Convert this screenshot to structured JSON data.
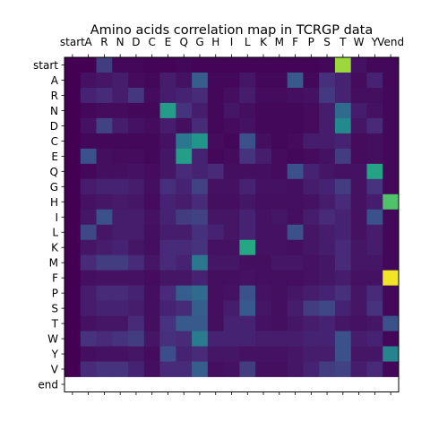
{
  "chart_data": {
    "type": "heatmap",
    "title": "Amino acids correlation map in TCRGP data",
    "x_labels": [
      "start",
      "A",
      "R",
      "N",
      "D",
      "C",
      "E",
      "Q",
      "G",
      "H",
      "I",
      "L",
      "K",
      "M",
      "F",
      "P",
      "S",
      "T",
      "W",
      "Y",
      "Vend"
    ],
    "y_labels": [
      "start",
      "A",
      "R",
      "N",
      "D",
      "C",
      "E",
      "Q",
      "G",
      "H",
      "I",
      "L",
      "K",
      "M",
      "F",
      "P",
      "S",
      "T",
      "W",
      "Y",
      "V",
      "end"
    ],
    "n_columns": 21,
    "colormap": "viridis",
    "value_range": [
      0,
      1
    ],
    "grid": false,
    "missing_rows": [
      "end"
    ],
    "values": [
      [
        0.0,
        0.0,
        0.18,
        0.02,
        0.02,
        0.01,
        0.01,
        0.02,
        0.01,
        0.01,
        0.01,
        0.01,
        0.01,
        0.01,
        0.01,
        0.01,
        0.02,
        0.85,
        0.05,
        0.02,
        0.02
      ],
      [
        0.0,
        0.05,
        0.06,
        0.08,
        0.03,
        0.02,
        0.08,
        0.05,
        0.3,
        0.02,
        0.02,
        0.06,
        0.02,
        0.02,
        0.28,
        0.02,
        0.14,
        0.1,
        0.03,
        0.1,
        0.02
      ],
      [
        0.0,
        0.1,
        0.12,
        0.08,
        0.16,
        0.03,
        0.08,
        0.1,
        0.12,
        0.02,
        0.04,
        0.08,
        0.03,
        0.03,
        0.04,
        0.05,
        0.17,
        0.1,
        0.04,
        0.04,
        0.02
      ],
      [
        0.0,
        0.02,
        0.03,
        0.03,
        0.02,
        0.02,
        0.55,
        0.15,
        0.08,
        0.02,
        0.06,
        0.04,
        0.02,
        0.02,
        0.02,
        0.03,
        0.08,
        0.35,
        0.08,
        0.05,
        0.02
      ],
      [
        0.0,
        0.05,
        0.2,
        0.08,
        0.05,
        0.03,
        0.08,
        0.04,
        0.12,
        0.02,
        0.03,
        0.05,
        0.02,
        0.02,
        0.02,
        0.03,
        0.08,
        0.47,
        0.06,
        0.12,
        0.02
      ],
      [
        0.0,
        0.02,
        0.02,
        0.02,
        0.02,
        0.02,
        0.05,
        0.4,
        0.52,
        0.03,
        0.02,
        0.25,
        0.04,
        0.02,
        0.03,
        0.08,
        0.08,
        0.1,
        0.03,
        0.04,
        0.02
      ],
      [
        0.0,
        0.25,
        0.04,
        0.03,
        0.03,
        0.02,
        0.06,
        0.56,
        0.1,
        0.02,
        0.03,
        0.15,
        0.08,
        0.03,
        0.02,
        0.03,
        0.05,
        0.18,
        0.03,
        0.04,
        0.02
      ],
      [
        0.0,
        0.02,
        0.04,
        0.04,
        0.05,
        0.03,
        0.06,
        0.12,
        0.1,
        0.12,
        0.04,
        0.04,
        0.04,
        0.03,
        0.25,
        0.1,
        0.06,
        0.05,
        0.05,
        0.58,
        0.02
      ],
      [
        0.0,
        0.08,
        0.1,
        0.1,
        0.08,
        0.04,
        0.14,
        0.1,
        0.2,
        0.05,
        0.05,
        0.1,
        0.05,
        0.05,
        0.04,
        0.08,
        0.1,
        0.18,
        0.05,
        0.15,
        0.02
      ],
      [
        0.0,
        0.05,
        0.06,
        0.07,
        0.06,
        0.03,
        0.1,
        0.08,
        0.12,
        0.04,
        0.04,
        0.06,
        0.04,
        0.04,
        0.04,
        0.05,
        0.08,
        0.12,
        0.05,
        0.08,
        0.72
      ],
      [
        0.0,
        0.06,
        0.25,
        0.08,
        0.08,
        0.05,
        0.1,
        0.18,
        0.2,
        0.06,
        0.06,
        0.1,
        0.05,
        0.06,
        0.04,
        0.08,
        0.12,
        0.1,
        0.05,
        0.25,
        0.02
      ],
      [
        0.0,
        0.22,
        0.06,
        0.08,
        0.08,
        0.04,
        0.08,
        0.08,
        0.14,
        0.1,
        0.06,
        0.1,
        0.05,
        0.05,
        0.25,
        0.06,
        0.08,
        0.1,
        0.05,
        0.08,
        0.02
      ],
      [
        0.0,
        0.06,
        0.08,
        0.1,
        0.06,
        0.04,
        0.12,
        0.12,
        0.15,
        0.05,
        0.05,
        0.6,
        0.05,
        0.05,
        0.04,
        0.06,
        0.08,
        0.12,
        0.06,
        0.08,
        0.02
      ],
      [
        0.0,
        0.12,
        0.18,
        0.18,
        0.12,
        0.06,
        0.12,
        0.1,
        0.4,
        0.06,
        0.06,
        0.04,
        0.04,
        0.06,
        0.06,
        0.05,
        0.06,
        0.12,
        0.06,
        0.06,
        0.02
      ],
      [
        0.0,
        0.04,
        0.05,
        0.05,
        0.05,
        0.03,
        0.06,
        0.06,
        0.1,
        0.04,
        0.04,
        0.05,
        0.04,
        0.04,
        0.04,
        0.05,
        0.06,
        0.08,
        0.05,
        0.05,
        0.98
      ],
      [
        0.0,
        0.08,
        0.12,
        0.12,
        0.1,
        0.04,
        0.12,
        0.3,
        0.35,
        0.04,
        0.05,
        0.25,
        0.05,
        0.04,
        0.06,
        0.08,
        0.1,
        0.14,
        0.06,
        0.12,
        0.02
      ],
      [
        0.0,
        0.08,
        0.1,
        0.1,
        0.08,
        0.04,
        0.1,
        0.12,
        0.3,
        0.04,
        0.08,
        0.28,
        0.06,
        0.04,
        0.08,
        0.18,
        0.22,
        0.1,
        0.06,
        0.15,
        0.02
      ],
      [
        0.0,
        0.05,
        0.06,
        0.06,
        0.12,
        0.04,
        0.15,
        0.28,
        0.28,
        0.04,
        0.1,
        0.1,
        0.05,
        0.04,
        0.06,
        0.08,
        0.1,
        0.06,
        0.05,
        0.06,
        0.25
      ],
      [
        0.0,
        0.15,
        0.12,
        0.15,
        0.18,
        0.06,
        0.14,
        0.12,
        0.42,
        0.1,
        0.1,
        0.1,
        0.08,
        0.08,
        0.08,
        0.1,
        0.1,
        0.25,
        0.08,
        0.1,
        0.02
      ],
      [
        0.0,
        0.04,
        0.05,
        0.05,
        0.06,
        0.03,
        0.24,
        0.1,
        0.12,
        0.06,
        0.06,
        0.05,
        0.05,
        0.05,
        0.06,
        0.08,
        0.08,
        0.25,
        0.06,
        0.06,
        0.45
      ],
      [
        0.0,
        0.12,
        0.15,
        0.15,
        0.1,
        0.04,
        0.12,
        0.12,
        0.3,
        0.04,
        0.05,
        0.18,
        0.04,
        0.04,
        0.06,
        0.1,
        0.18,
        0.2,
        0.08,
        0.12,
        0.02
      ]
    ]
  }
}
